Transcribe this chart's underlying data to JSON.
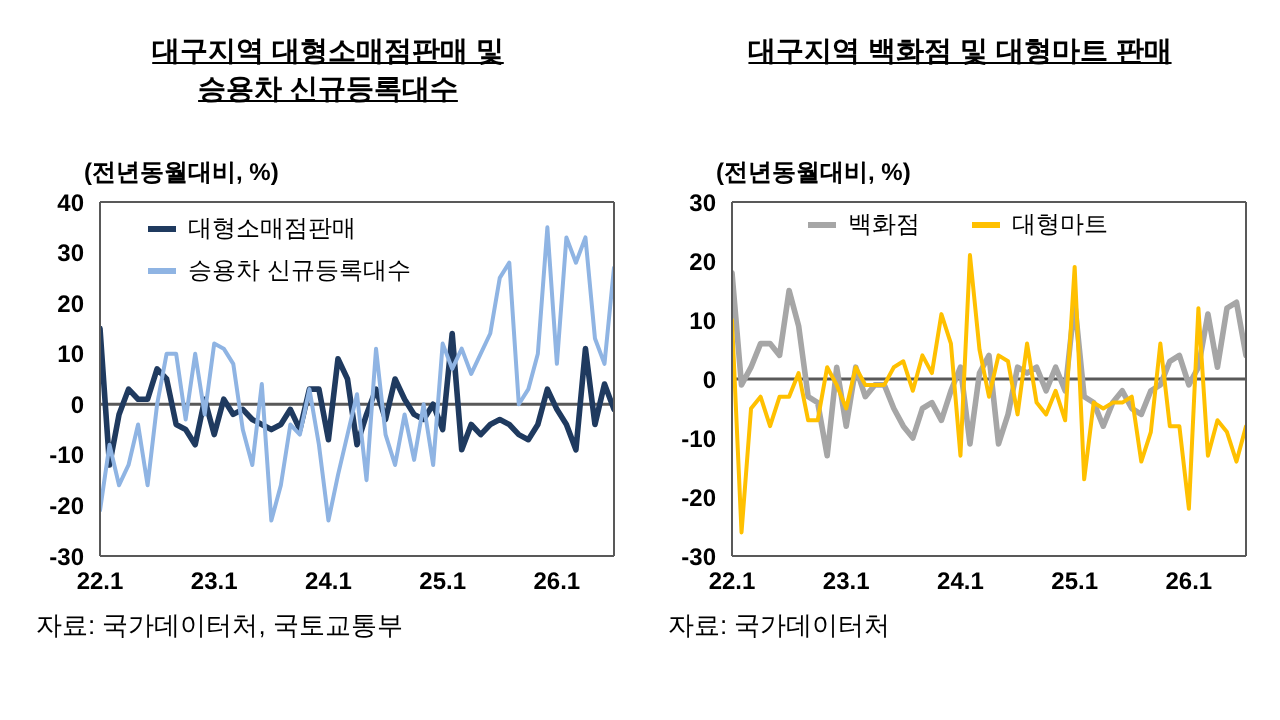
{
  "chart_data": [
    {
      "type": "line",
      "title": "대구지역 대형소매점판매 및\n승용차 신규등록대수",
      "ylabel": "(전년동월대비, %)",
      "categories": [
        "22.1",
        null,
        null,
        null,
        null,
        null,
        null,
        null,
        null,
        null,
        null,
        null,
        "23.1",
        null,
        null,
        null,
        null,
        null,
        null,
        null,
        null,
        null,
        null,
        null,
        "24.1",
        null,
        null,
        null,
        null,
        null,
        null,
        null,
        null,
        null,
        null,
        null,
        "25.1",
        null,
        null,
        null,
        null,
        null,
        null,
        null,
        null,
        null,
        null,
        null,
        "26.1",
        null,
        null,
        null,
        null,
        null,
        null
      ],
      "ylim": [
        -30,
        40
      ],
      "yticks": [
        -30,
        -20,
        -10,
        0,
        10,
        20,
        30,
        40
      ],
      "grid": false,
      "legend": "top left",
      "marker": "none",
      "series": [
        {
          "name": "대형소매점판매",
          "color": "#1f3a5f",
          "values": [
            15,
            -12,
            -2,
            3,
            1,
            1,
            7,
            5,
            -4,
            -5,
            -8,
            1,
            -6,
            1,
            -2,
            -1,
            -3,
            -4,
            -5,
            -4,
            -1,
            -5,
            3,
            3,
            -7,
            9,
            5,
            -8,
            -2,
            3,
            -3,
            5,
            1,
            -2,
            -3,
            0,
            -5,
            14,
            -9,
            -4,
            -6,
            -4,
            -3,
            -4,
            -6,
            -7,
            -4,
            3,
            -1,
            -4,
            -9,
            11,
            -4,
            4,
            -1
          ]
        },
        {
          "name": "승용차 신규등록대수",
          "color": "#8fb4e3",
          "values": [
            -21,
            -8,
            -16,
            -12,
            -4,
            -16,
            0,
            10,
            10,
            -3,
            10,
            -2,
            12,
            11,
            8,
            -5,
            -12,
            4,
            -23,
            -16,
            -4,
            -6,
            3,
            -8,
            -23,
            -14,
            -6,
            2,
            -15,
            11,
            -6,
            -12,
            -2,
            -11,
            0,
            -12,
            12,
            7,
            11,
            6,
            10,
            14,
            25,
            28,
            0,
            3,
            10,
            35,
            8,
            33,
            28,
            33,
            13,
            8,
            27
          ]
        }
      ],
      "ref_lines": [
        {
          "axis": "y",
          "value": 0,
          "color": "#595959"
        }
      ],
      "annotations": [
        "자료: 국가데이터처, 국토교통부"
      ]
    },
    {
      "type": "line",
      "title": "대구지역 백화점 및 대형마트 판매",
      "ylabel": "(전년동월대비, %)",
      "categories": [
        "22.1",
        null,
        null,
        null,
        null,
        null,
        null,
        null,
        null,
        null,
        null,
        null,
        "23.1",
        null,
        null,
        null,
        null,
        null,
        null,
        null,
        null,
        null,
        null,
        null,
        "24.1",
        null,
        null,
        null,
        null,
        null,
        null,
        null,
        null,
        null,
        null,
        null,
        "25.1",
        null,
        null,
        null,
        null,
        null,
        null,
        null,
        null,
        null,
        null,
        null,
        "26.1",
        null,
        null,
        null,
        null,
        null,
        null
      ],
      "ylim": [
        -30,
        30
      ],
      "yticks": [
        -30,
        -20,
        -10,
        0,
        10,
        20,
        30
      ],
      "grid": false,
      "legend": "top",
      "marker": "none",
      "series": [
        {
          "name": "백화점",
          "color": "#a6a6a6",
          "values": [
            18,
            -1,
            2,
            6,
            6,
            4,
            15,
            9,
            -3,
            -4,
            -13,
            2,
            -8,
            2,
            -3,
            -1,
            -1,
            -5,
            -8,
            -10,
            -5,
            -4,
            -7,
            -2,
            2,
            -11,
            1,
            4,
            -11,
            -6,
            2,
            1,
            2,
            -2,
            2,
            -2,
            13,
            -3,
            -4,
            -8,
            -4,
            -2,
            -5,
            -6,
            -2,
            -1,
            3,
            4,
            -1,
            2,
            11,
            2,
            12,
            13,
            4
          ]
        },
        {
          "name": "대형마트",
          "color": "#ffc000",
          "values": [
            10,
            -26,
            -5,
            -3,
            -8,
            -3,
            -3,
            1,
            -7,
            -7,
            2,
            -1,
            -5,
            2,
            -1,
            -1,
            -1,
            2,
            3,
            -2,
            4,
            1,
            11,
            6,
            -13,
            21,
            5,
            -3,
            4,
            3,
            -6,
            6,
            -4,
            -6,
            -2,
            -7,
            19,
            -17,
            -4,
            -5,
            -4,
            -4,
            -3,
            -14,
            -9,
            6,
            -8,
            -8,
            -22,
            12,
            -13,
            -7,
            -9,
            -14,
            -8
          ]
        }
      ],
      "ref_lines": [
        {
          "axis": "y",
          "value": 0,
          "color": "#595959"
        }
      ],
      "annotations": [
        "자료: 국가데이터처"
      ]
    }
  ]
}
